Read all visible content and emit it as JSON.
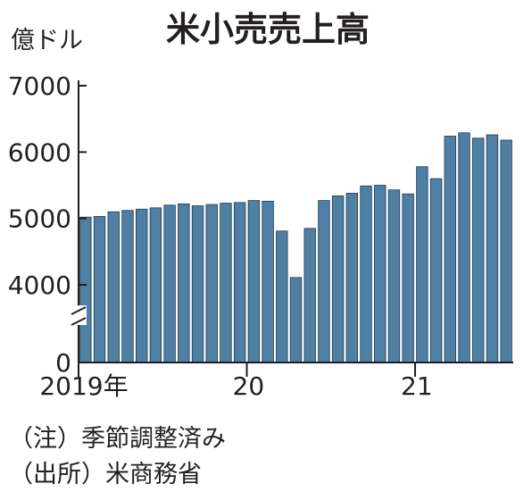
{
  "chart_data": {
    "type": "bar",
    "title": "米小売売上高",
    "unit_label": "億ドル",
    "bar_color": "#4f7fa3",
    "bar_edge_color": "#1a3a55",
    "axis_color": "#231f20",
    "y_axis_break": true,
    "ylim": [
      0,
      7000
    ],
    "y_ticks": [
      {
        "value": 0,
        "label": "0"
      },
      {
        "value": 4000,
        "label": "4000"
      },
      {
        "value": 5000,
        "label": "5000"
      },
      {
        "value": 6000,
        "label": "6000"
      },
      {
        "value": 7000,
        "label": "7000"
      }
    ],
    "x_tick_labels": [
      {
        "index": 0,
        "label": "2019年"
      },
      {
        "index": 12,
        "label": "20"
      },
      {
        "index": 24,
        "label": "21"
      }
    ],
    "x": [
      "2019-01",
      "2019-02",
      "2019-03",
      "2019-04",
      "2019-05",
      "2019-06",
      "2019-07",
      "2019-08",
      "2019-09",
      "2019-10",
      "2019-11",
      "2019-12",
      "2020-01",
      "2020-02",
      "2020-03",
      "2020-04",
      "2020-05",
      "2020-06",
      "2020-07",
      "2020-08",
      "2020-09",
      "2020-10",
      "2020-11",
      "2020-12",
      "2021-01",
      "2021-02",
      "2021-03",
      "2021-04",
      "2021-05",
      "2021-06",
      "2021-07"
    ],
    "values": [
      5020,
      5030,
      5100,
      5120,
      5140,
      5160,
      5200,
      5220,
      5190,
      5210,
      5230,
      5240,
      5270,
      5260,
      4810,
      4110,
      4850,
      5270,
      5340,
      5380,
      5490,
      5500,
      5430,
      5370,
      5780,
      5600,
      6240,
      6290,
      6210,
      6260,
      6180
    ],
    "notes": [
      "（注）季節調整済み",
      "（出所）米商務省"
    ]
  }
}
